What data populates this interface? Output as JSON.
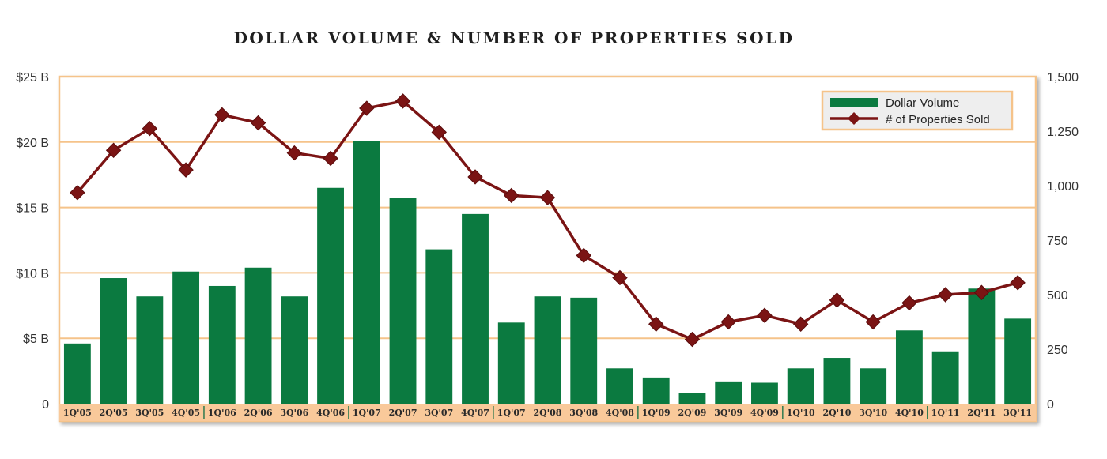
{
  "chart_data": {
    "type": "bar+line",
    "title": "DOLLAR VOLUME & NUMBER OF PROPERTIES SOLD",
    "categories": [
      "1Q'05",
      "2Q'05",
      "3Q'05",
      "4Q'05",
      "1Q'06",
      "2Q'06",
      "3Q'06",
      "4Q'06",
      "1Q'07",
      "2Q'07",
      "3Q'07",
      "4Q'07",
      "1Q'07",
      "2Q'08",
      "3Q'08",
      "4Q'08",
      "1Q'09",
      "2Q'09",
      "3Q'09",
      "4Q'09",
      "1Q'10",
      "2Q'10",
      "3Q'10",
      "4Q'10",
      "1Q'11",
      "2Q'11",
      "3Q'11"
    ],
    "series": [
      {
        "name": "Dollar Volume",
        "type": "bar",
        "axis": "left",
        "color": "#0b7a40",
        "values": [
          4.6,
          9.6,
          8.2,
          10.1,
          9.0,
          10.4,
          8.2,
          16.5,
          20.1,
          15.7,
          11.8,
          14.5,
          6.2,
          8.2,
          8.1,
          2.7,
          2.0,
          0.8,
          1.7,
          1.6,
          2.7,
          3.5,
          2.7,
          5.6,
          4.0,
          8.8,
          6.5
        ]
      },
      {
        "name": "# of Properties Sold",
        "type": "line",
        "axis": "right",
        "color": "#7b1414",
        "values": [
          968,
          1162,
          1262,
          1072,
          1325,
          1288,
          1150,
          1125,
          1355,
          1388,
          1245,
          1040,
          955,
          945,
          680,
          578,
          365,
          295,
          375,
          405,
          365,
          475,
          375,
          462,
          500,
          510,
          555
        ]
      }
    ],
    "left_axis": {
      "ylim": [
        0,
        25
      ],
      "ticks": [
        0,
        5,
        10,
        15,
        20,
        25
      ],
      "tick_labels": [
        "0",
        "$5 B",
        "$10 B",
        "$15 B",
        "$20 B",
        "$25 B"
      ]
    },
    "right_axis": {
      "ylim": [
        0,
        1500
      ],
      "ticks": [
        0,
        250,
        500,
        750,
        1000,
        1250,
        1500
      ],
      "tick_labels": [
        "0",
        "250",
        "500",
        "750",
        "1,000",
        "1,250",
        "1,500"
      ]
    },
    "grid": true,
    "grid_color": "#f5c38a",
    "legend_position": "top-right",
    "xaxis_band_color": "#f9c99a",
    "frame_color": "#f5c38a",
    "year_separator_after": [
      "4Q'05",
      "4Q'06",
      "4Q'07",
      "4Q'08",
      "4Q'09",
      "4Q'10"
    ]
  }
}
